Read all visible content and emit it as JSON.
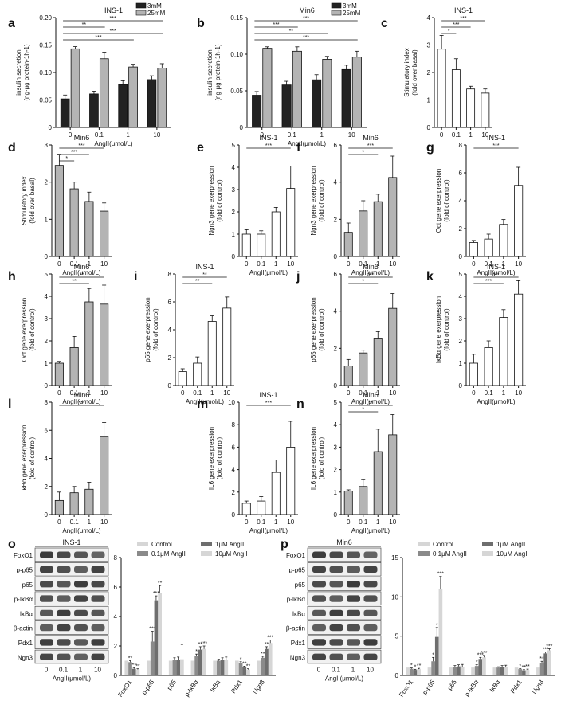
{
  "colors": {
    "black": "#222222",
    "gray": "#b4b4b4",
    "white": "#ffffff",
    "mid": "#8a8a8a",
    "light": "#d6d6d6",
    "dark": "#6e6e6e"
  },
  "chart_data": [
    {
      "type": "bar",
      "panel": "a",
      "title": "INS-1",
      "xlabel": "AngII(μmol/L)",
      "ylabel": "insulin secretion\n(ng·μg protein-1h-1)",
      "ylim": [
        0,
        0.2
      ],
      "yticks": [
        "0",
        "0.05",
        "0.10",
        "0.15",
        "0.20"
      ],
      "categories": [
        "0",
        "0.1",
        "1",
        "10"
      ],
      "series": [
        {
          "name": "3mM",
          "color": "black",
          "values": [
            0.052,
            0.061,
            0.078,
            0.087
          ]
        },
        {
          "name": "25mM",
          "color": "gray",
          "values": [
            0.143,
            0.125,
            0.11,
            0.108
          ]
        }
      ],
      "errors": [
        [
          0.007,
          0.005,
          0.007,
          0.007
        ],
        [
          0.004,
          0.012,
          0.005,
          0.008
        ]
      ],
      "legend": "top-right",
      "sig": [
        {
          "from": 0,
          "to": 3,
          "label": "***"
        },
        {
          "from": 0,
          "to": 1,
          "label": "**"
        },
        {
          "from": 0,
          "to": 3,
          "label": "***"
        },
        {
          "from": 0,
          "to": 2,
          "label": "***"
        }
      ]
    },
    {
      "type": "bar",
      "panel": "b",
      "title": "Min6",
      "xlabel": "AngII(μmol/L)",
      "ylabel": "insulin secretion\n(ng·μg protein-1h-1)",
      "ylim": [
        0,
        0.15
      ],
      "yticks": [
        "0",
        "0.05",
        "0.10",
        "0.15"
      ],
      "categories": [
        "0",
        "0.1",
        "1",
        "10"
      ],
      "series": [
        {
          "name": "3mM",
          "color": "black",
          "values": [
            0.044,
            0.058,
            0.065,
            0.079
          ]
        },
        {
          "name": "25mM",
          "color": "gray",
          "values": [
            0.108,
            0.104,
            0.093,
            0.096
          ]
        }
      ],
      "errors": [
        [
          0.005,
          0.005,
          0.007,
          0.006
        ],
        [
          0.002,
          0.006,
          0.004,
          0.008
        ]
      ],
      "legend": "top-right",
      "sig": [
        {
          "from": 0,
          "to": 3,
          "label": "***"
        },
        {
          "from": 0,
          "to": 1,
          "label": "***"
        },
        {
          "from": 0,
          "to": 2,
          "label": "**"
        },
        {
          "from": 0,
          "to": 3,
          "label": "***"
        }
      ]
    },
    {
      "type": "bar",
      "panel": "c",
      "title": "INS-1",
      "xlabel": "",
      "ylabel": "Stimulatory index\n(fold over basal)",
      "ylim": [
        0,
        4
      ],
      "yticks": [
        "0",
        "1",
        "2",
        "3",
        "4"
      ],
      "fill": "white",
      "categories": [
        "0",
        "0.1",
        "1",
        "10"
      ],
      "values": [
        2.85,
        2.1,
        1.4,
        1.25
      ],
      "errors": [
        0.5,
        0.4,
        0.1,
        0.15
      ],
      "sig": [
        {
          "from": 0,
          "to": 3,
          "label": "***"
        },
        {
          "from": 0,
          "to": 2,
          "label": "***"
        },
        {
          "from": 0,
          "to": 1,
          "label": "*"
        }
      ]
    },
    {
      "type": "bar",
      "panel": "d",
      "title": "Min6",
      "xlabel": "AngII(μmol/L)",
      "ylabel": "Stimulatory index\n(fold over basal)",
      "ylim": [
        0,
        3
      ],
      "yticks": [
        "0",
        "1",
        "2",
        "3"
      ],
      "fill": "gray",
      "categories": [
        "0",
        "0.1",
        "1",
        "10"
      ],
      "values": [
        2.45,
        1.82,
        1.48,
        1.22
      ],
      "errors": [
        0.3,
        0.18,
        0.25,
        0.22
      ],
      "sig": [
        {
          "from": 0,
          "to": 3,
          "label": "***"
        },
        {
          "from": 0,
          "to": 2,
          "label": "***"
        },
        {
          "from": 0,
          "to": 1,
          "label": "*"
        }
      ]
    },
    {
      "type": "bar",
      "panel": "e",
      "title": "INS-1",
      "xlabel": "AngII(μmol/L)",
      "ylabel": "Ngn3 gene exerpression\n(fold of control)",
      "ylim": [
        0,
        5
      ],
      "yticks": [
        "0",
        "1",
        "2",
        "3",
        "4",
        "5"
      ],
      "fill": "white",
      "categories": [
        "0",
        "0.1",
        "1",
        "10"
      ],
      "values": [
        1.0,
        1.0,
        2.0,
        3.05
      ],
      "errors": [
        0.2,
        0.15,
        0.2,
        1.0
      ],
      "sig": [
        {
          "from": 0,
          "to": 3,
          "label": "***"
        }
      ]
    },
    {
      "type": "bar",
      "panel": "f",
      "title": "Min6",
      "xlabel": "AngII(μmol/L)",
      "ylabel": "Ngn3 gene exerpression\n(fold of control)",
      "ylim": [
        0,
        6
      ],
      "yticks": [
        "0",
        "2",
        "4",
        "6"
      ],
      "fill": "gray",
      "categories": [
        "0",
        "0.1",
        "1",
        "10"
      ],
      "values": [
        1.3,
        2.45,
        2.95,
        4.25
      ],
      "errors": [
        0.5,
        0.55,
        0.4,
        1.15
      ],
      "sig": [
        {
          "from": 0,
          "to": 3,
          "label": "***"
        },
        {
          "from": 0,
          "to": 2,
          "label": "*"
        }
      ]
    },
    {
      "type": "bar",
      "panel": "g",
      "title": "INS-1",
      "xlabel": "AngII(μmol/L)",
      "ylabel": "Oct gene exerpression\n(fold of control)",
      "ylim": [
        0,
        8
      ],
      "yticks": [
        "0",
        "2",
        "4",
        "6",
        "8"
      ],
      "fill": "white",
      "categories": [
        "0",
        "0.1",
        "1",
        "10"
      ],
      "values": [
        1.0,
        1.25,
        2.3,
        5.1
      ],
      "errors": [
        0.15,
        0.35,
        0.35,
        1.3
      ],
      "sig": [
        {
          "from": 0,
          "to": 3,
          "label": "***"
        }
      ]
    },
    {
      "type": "bar",
      "panel": "h",
      "title": "Min6",
      "xlabel": "AngII(μmol/L)",
      "ylabel": "Oct gene exerpression\n(fold of control)",
      "ylim": [
        0,
        5
      ],
      "yticks": [
        "0",
        "1",
        "2",
        "3",
        "4",
        "5"
      ],
      "fill": "gray",
      "categories": [
        "0",
        "0.1",
        "1",
        "10"
      ],
      "values": [
        1.0,
        1.7,
        3.75,
        3.65
      ],
      "errors": [
        0.08,
        0.5,
        0.6,
        0.85
      ],
      "sig": [
        {
          "from": 0,
          "to": 3,
          "label": "**"
        },
        {
          "from": 0,
          "to": 2,
          "label": "**"
        }
      ]
    },
    {
      "type": "bar",
      "panel": "i",
      "title": "INS-1",
      "xlabel": "AngII(μmol/L)",
      "ylabel": "p65 gene exerpression\n(fold of control)",
      "ylim": [
        0,
        8
      ],
      "yticks": [
        "0",
        "2",
        "4",
        "6",
        "8"
      ],
      "fill": "white",
      "categories": [
        "0",
        "0.1",
        "1",
        "10"
      ],
      "values": [
        1.0,
        1.6,
        4.6,
        5.55
      ],
      "errors": [
        0.2,
        0.45,
        0.4,
        0.8
      ],
      "sig": [
        {
          "from": 0,
          "to": 3,
          "label": "**"
        },
        {
          "from": 0,
          "to": 2,
          "label": "**"
        }
      ]
    },
    {
      "type": "bar",
      "panel": "j",
      "title": "Min6",
      "xlabel": "AngII(μmol/L)",
      "ylabel": "p65 gene exerpression\n(fold of control)",
      "ylim": [
        0,
        6
      ],
      "yticks": [
        "0",
        "2",
        "4",
        "6"
      ],
      "fill": "gray",
      "categories": [
        "0",
        "0.1",
        "1",
        "10"
      ],
      "values": [
        1.05,
        1.75,
        2.55,
        4.15
      ],
      "errors": [
        0.35,
        0.15,
        0.35,
        0.8
      ],
      "sig": [
        {
          "from": 0,
          "to": 3,
          "label": "***"
        },
        {
          "from": 0,
          "to": 2,
          "label": "*"
        }
      ]
    },
    {
      "type": "bar",
      "panel": "k",
      "title": "INS-1",
      "xlabel": "AngII(μmol/L)",
      "ylabel": "IκBα gene exerpression\n(fold of control)",
      "ylim": [
        0,
        5
      ],
      "yticks": [
        "0",
        "1",
        "2",
        "3",
        "4",
        "5"
      ],
      "fill": "white",
      "categories": [
        "0",
        "0.1",
        "1",
        "10"
      ],
      "values": [
        1.0,
        1.7,
        3.05,
        4.1
      ],
      "errors": [
        0.4,
        0.3,
        0.35,
        0.6
      ],
      "sig": [
        {
          "from": 0,
          "to": 3,
          "label": "***"
        },
        {
          "from": 0,
          "to": 2,
          "label": "***"
        }
      ]
    },
    {
      "type": "bar",
      "panel": "l",
      "title": "Min6",
      "xlabel": "AngII(μmol/L)",
      "ylabel": "IκBα gene exerpression\n(fold of control)",
      "ylim": [
        0,
        8
      ],
      "yticks": [
        "0",
        "2",
        "4",
        "6",
        "8"
      ],
      "fill": "gray",
      "categories": [
        "0",
        "0.1",
        "1",
        "10"
      ],
      "values": [
        1.0,
        1.55,
        1.8,
        5.55
      ],
      "errors": [
        0.6,
        0.45,
        0.5,
        1.0
      ],
      "sig": [
        {
          "from": 0,
          "to": 3,
          "label": "***"
        }
      ]
    },
    {
      "type": "bar",
      "panel": "m",
      "title": "INS-1",
      "xlabel": "AngII(μmol/L)",
      "ylabel": "IL6 gene exerpression\n(fold of control)",
      "ylim": [
        0,
        10
      ],
      "yticks": [
        "0",
        "2",
        "4",
        "6",
        "8",
        "10"
      ],
      "fill": "white",
      "categories": [
        "0",
        "0.1",
        "1",
        "10"
      ],
      "values": [
        1.0,
        1.2,
        3.75,
        6.0
      ],
      "errors": [
        0.2,
        0.4,
        1.1,
        2.3
      ],
      "sig": [
        {
          "from": 0,
          "to": 3,
          "label": "***"
        }
      ]
    },
    {
      "type": "bar",
      "panel": "n",
      "title": "Min6",
      "xlabel": "AngII(μmol/L)",
      "ylabel": "IL6 gene exerpression\n(fold of control)",
      "ylim": [
        0,
        5
      ],
      "yticks": [
        "0",
        "1",
        "2",
        "3",
        "4",
        "5"
      ],
      "fill": "gray",
      "categories": [
        "0",
        "0.1",
        "1",
        "10"
      ],
      "values": [
        1.05,
        1.25,
        2.8,
        3.55
      ],
      "errors": [
        0.05,
        0.3,
        1.0,
        0.9
      ],
      "sig": [
        {
          "from": 0,
          "to": 3,
          "label": "**"
        },
        {
          "from": 0,
          "to": 2,
          "label": "*"
        }
      ]
    },
    {
      "type": "bar",
      "panel": "o",
      "ylim": [
        0,
        8
      ],
      "yticks": [
        "0",
        "2",
        "4",
        "6",
        "8"
      ],
      "categories": [
        "FoxO1",
        "p-p65",
        "p65",
        "p-IκBα",
        "IκBα",
        "Pdx1",
        "Ngn3"
      ],
      "series": [
        {
          "name": "Control",
          "color": "light",
          "values": [
            1.0,
            1.0,
            1.0,
            1.0,
            1.0,
            1.0,
            1.0
          ]
        },
        {
          "name": "0.1μM AngII",
          "color": "mid",
          "values": [
            0.9,
            2.3,
            1.05,
            1.3,
            1.0,
            0.85,
            1.2
          ]
        },
        {
          "name": "1μM AngII",
          "color": "dark",
          "values": [
            0.45,
            5.1,
            1.05,
            1.75,
            1.05,
            0.55,
            1.8
          ]
        },
        {
          "name": "10μM AngII",
          "color": "light",
          "values": [
            0.4,
            5.6,
            1.1,
            1.8,
            1.05,
            0.4,
            2.2
          ]
        }
      ],
      "errors": [
        [
          0,
          0,
          0,
          0,
          0,
          0,
          0
        ],
        [
          0.1,
          0.7,
          0.15,
          0.15,
          0.1,
          0.08,
          0.1
        ],
        [
          0.08,
          0.3,
          0.2,
          0.2,
          0.15,
          0.08,
          0.15
        ],
        [
          0.05,
          0.5,
          1.0,
          0.2,
          0.2,
          0.05,
          0.2
        ]
      ],
      "stars": [
        [
          "",
          "",
          "",
          "",
          "",
          "",
          ""
        ],
        [
          "**",
          "***",
          "",
          "*",
          "",
          "*",
          "**"
        ],
        [
          "**",
          "***",
          "",
          "**",
          "",
          "**",
          "**"
        ],
        [
          "**",
          "**",
          "",
          "***",
          "",
          "**",
          "***"
        ]
      ],
      "legend": "top-center"
    },
    {
      "type": "bar",
      "panel": "p",
      "ylim": [
        0,
        15
      ],
      "yticks": [
        "0",
        "5",
        "10",
        "15"
      ],
      "categories": [
        "FoxO1",
        "p-p65",
        "p65",
        "p-IκBα",
        "IκBα",
        "Pdx1",
        "Ngn3"
      ],
      "series": [
        {
          "name": "Control",
          "color": "light",
          "values": [
            1.0,
            1.0,
            1.0,
            1.0,
            1.0,
            1.0,
            1.0
          ]
        },
        {
          "name": "0.1μM AngII",
          "color": "mid",
          "values": [
            0.85,
            1.8,
            1.1,
            1.2,
            1.0,
            0.8,
            1.6
          ]
        },
        {
          "name": "1μM AngII",
          "color": "dark",
          "values": [
            0.7,
            4.9,
            1.15,
            2.1,
            1.1,
            0.65,
            2.8
          ]
        },
        {
          "name": "10μM AngII",
          "color": "light",
          "values": [
            0.8,
            11.0,
            1.1,
            2.3,
            1.1,
            0.7,
            3.2
          ]
        }
      ],
      "errors": [
        [
          0,
          0,
          0,
          0,
          0,
          0,
          0
        ],
        [
          0.1,
          0.5,
          0.15,
          0.15,
          0.1,
          0.08,
          0.2
        ],
        [
          0.08,
          1.2,
          0.2,
          0.2,
          0.15,
          0.08,
          0.2
        ],
        [
          0.1,
          1.6,
          0.3,
          0.25,
          0.2,
          0.1,
          0.2
        ]
      ],
      "stars": [
        [
          "",
          "",
          "",
          "",
          "",
          "",
          ""
        ],
        [
          "*",
          "*",
          "",
          "*",
          "",
          "*",
          "**"
        ],
        [
          "*",
          "*",
          "",
          "***",
          "",
          "**",
          "***"
        ],
        [
          "**",
          "***",
          "",
          "***",
          "",
          "**",
          "***"
        ]
      ],
      "legend": "top-center"
    }
  ],
  "panels": [
    "a",
    "b",
    "c",
    "d",
    "e",
    "f",
    "g",
    "h",
    "i",
    "j",
    "k",
    "l",
    "m",
    "n",
    "o",
    "p"
  ],
  "blots": {
    "o": {
      "title": "INS-1",
      "rows": [
        "FoxO1",
        "p-p65",
        "p65",
        "p-IκBα",
        "IκBα",
        "β-actin",
        "Pdx1",
        "Ngn3"
      ],
      "doses": [
        "0",
        "0.1",
        "1",
        "10"
      ],
      "xlabel": "AngII(μmol/L)"
    },
    "p": {
      "title": "Min6",
      "rows": [
        "FoxO1",
        "p-p65",
        "p65",
        "p-IκBα",
        "IκBα",
        "β-actin",
        "Pdx1",
        "Ngn3"
      ],
      "doses": [
        "0",
        "0.1",
        "1",
        "10"
      ],
      "xlabel": "AngII(μmol/L)"
    }
  }
}
